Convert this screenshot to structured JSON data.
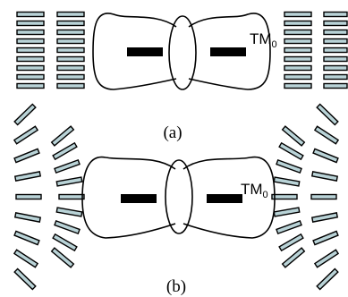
{
  "panels": [
    {
      "id": "a",
      "caption": "(a)",
      "mode_label": "TM",
      "mode_subscript": "0",
      "liquid_crystal_alignment": "parallel"
    },
    {
      "id": "b",
      "caption": "(b)",
      "mode_label": "TM",
      "mode_subscript": "0",
      "liquid_crystal_alignment": "fanned"
    }
  ],
  "colors": {
    "molecule_fill": "#b9d3d7",
    "outline": "#000000",
    "background": "#ffffff"
  }
}
